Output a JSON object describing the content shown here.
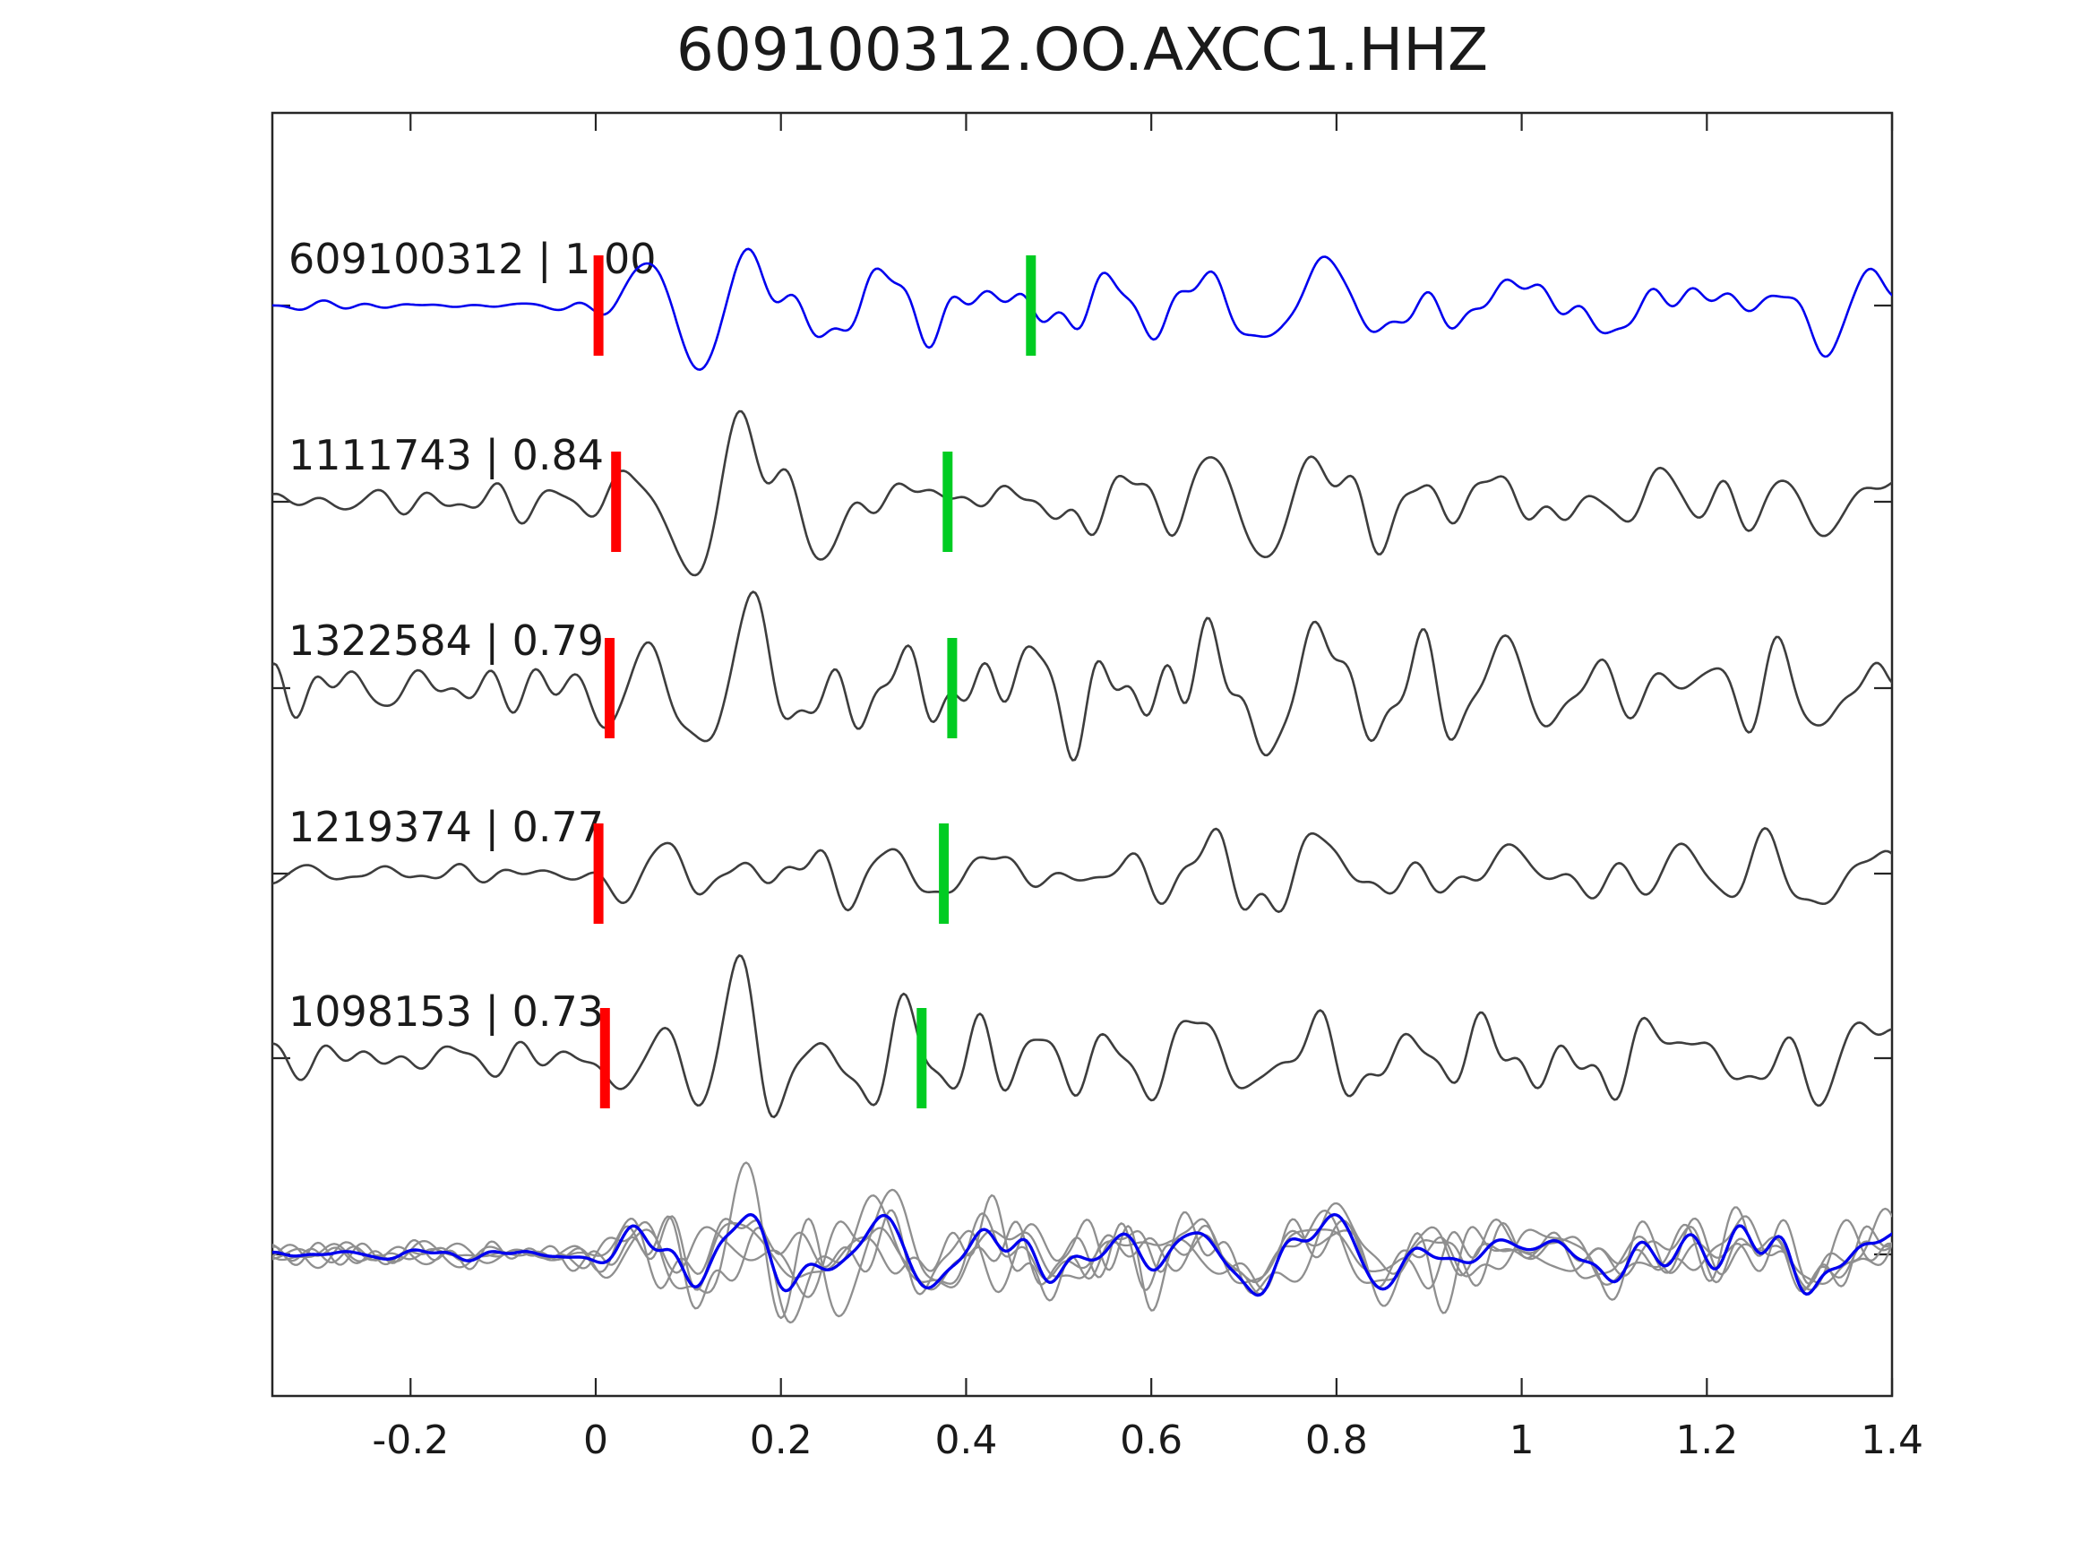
{
  "page": {
    "background": "#ffffff",
    "window_title": "609100312.OO.AXCC1.HHZ"
  },
  "chart_data": {
    "type": "line",
    "subtype": "seismic-waveform-correlation",
    "title": "609100312.OO.AXCC1.HHZ",
    "x_axis": {
      "range": [
        -0.35,
        1.4
      ],
      "ticks": [
        -0.2,
        0,
        0.2,
        0.4,
        0.6,
        0.8,
        1,
        1.2,
        1.4
      ],
      "tick_labels": [
        "-0.2",
        "0",
        "0.2",
        "0.4",
        "0.6",
        "0.8",
        "1",
        "1.2",
        "1.4"
      ],
      "grid": false,
      "tick_direction": "in"
    },
    "y_axis": {
      "tick_labels": [],
      "rows": 6,
      "grid": false
    },
    "legend_position": "none",
    "traces": [
      {
        "id": "609100312",
        "correlation": "1.00",
        "label": "609100312 | 1.00",
        "color": "#0000EE",
        "red_pick_x": 0.003,
        "green_pick_x": 0.47,
        "burst_amplitude": 175,
        "noise_pre": 6,
        "noise_post": 22
      },
      {
        "id": "1111743",
        "correlation": "0.84",
        "label": "1111743 | 0.84",
        "color": "#3D3D3D",
        "red_pick_x": 0.022,
        "green_pick_x": 0.38,
        "burst_amplitude": 160,
        "noise_pre": 24,
        "noise_post": 42
      },
      {
        "id": "1322584",
        "correlation": "0.79",
        "label": "1322584 | 0.79",
        "color": "#3D3D3D",
        "red_pick_x": 0.015,
        "green_pick_x": 0.385,
        "burst_amplitude": 165,
        "noise_pre": 36,
        "noise_post": 58
      },
      {
        "id": "1219374",
        "correlation": "0.77",
        "label": "1219374 | 0.77",
        "color": "#3D3D3D",
        "red_pick_x": 0.003,
        "green_pick_x": 0.376,
        "burst_amplitude": 150,
        "noise_pre": 15,
        "noise_post": 34
      },
      {
        "id": "1098153",
        "correlation": "0.73",
        "label": "1098153 | 0.73",
        "color": "#3D3D3D",
        "red_pick_x": 0.01,
        "green_pick_x": 0.352,
        "burst_amplitude": 158,
        "noise_pre": 27,
        "noise_post": 46
      }
    ],
    "overlay_row": {
      "description": "all aligned traces overlaid with stacked trace",
      "member_count": 5,
      "member_color": "#8F8F8F",
      "stack_color": "#0000EE",
      "burst_amplitude": 140,
      "noise_pre": 22,
      "noise_post": 42
    },
    "markers": {
      "red_color": "#FF0000",
      "green_color": "#00CC22",
      "meaning_red": "pick on trace near 0 s",
      "meaning_green": "secondary pick"
    }
  },
  "axis_style": {
    "spine_color": "#262626",
    "text_color": "#1a1a1a"
  }
}
